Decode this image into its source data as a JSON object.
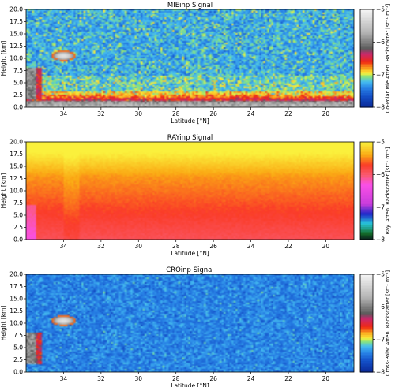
{
  "chart_data": [
    {
      "type": "heatmap",
      "title": "MIEinp Signal",
      "xlabel": "Latitude [°N]",
      "ylabel": "Height [km]",
      "colorbar_label": "Co-Polar Mie Atten. Backscatter [sr⁻¹ m⁻¹]",
      "xlim": [
        36,
        18.5
      ],
      "x_reversed": true,
      "ylim": [
        0,
        20
      ],
      "xticks": [
        34,
        32,
        30,
        28,
        26,
        24,
        22,
        20
      ],
      "xtick_labels": [
        "34",
        "32",
        "30",
        "28",
        "26",
        "24",
        "22",
        "20"
      ],
      "yticks": [
        0.0,
        2.5,
        5.0,
        7.5,
        10.0,
        12.5,
        15.0,
        17.5,
        20.0
      ],
      "ytick_labels": [
        "0.0",
        "2.5",
        "5.0",
        "7.5",
        "10.0",
        "12.5",
        "15.0",
        "17.5",
        "20.0"
      ],
      "colorbar_range": [
        -8,
        -5
      ],
      "colorbar_ticks": [
        -8,
        -7,
        -6,
        -5
      ],
      "colorbar_tick_labels": [
        "−8",
        "−7",
        "−6",
        "−5"
      ],
      "colormap": "mie",
      "features": [
        "noisy background ~ -7.2",
        "boundary layer aerosol 0–3 km",
        "ice cloud near 34°N at ~10.5 km",
        "dense cloud near 35.5°N below 8 km"
      ]
    },
    {
      "type": "heatmap",
      "title": "RAYinp Signal",
      "xlabel": "Latitude [°N]",
      "ylabel": "Height [km]",
      "colorbar_label": "Ray. Atten. Backscatter [sr⁻¹ m⁻¹]",
      "xlim": [
        36,
        18.5
      ],
      "x_reversed": true,
      "ylim": [
        0,
        20
      ],
      "xticks": [
        34,
        32,
        30,
        28,
        26,
        24,
        22,
        20
      ],
      "xtick_labels": [
        "34",
        "32",
        "30",
        "28",
        "26",
        "24",
        "22",
        "20"
      ],
      "yticks": [
        0.0,
        2.5,
        5.0,
        7.5,
        10.0,
        12.5,
        15.0,
        17.5,
        20.0
      ],
      "ytick_labels": [
        "0.0",
        "2.5",
        "5.0",
        "7.5",
        "10.0",
        "12.5",
        "15.0",
        "17.5",
        "20.0"
      ],
      "colorbar_range": [
        -8,
        -5
      ],
      "colorbar_ticks": [
        -8,
        -7,
        -6,
        -5
      ],
      "colorbar_tick_labels": [
        "−8",
        "−7",
        "−6",
        "−5"
      ],
      "colormap": "ray",
      "features": [
        "signal decreases with height from ~ -5.9 near ground to ~ -5.2 at 20 km"
      ]
    },
    {
      "type": "heatmap",
      "title": "CROinp Signal",
      "xlabel": "Latitude [°N]",
      "ylabel": "Height [km]",
      "colorbar_label": "Cross-Polar Atten. Backscatter [sr⁻¹ m⁻¹]",
      "xlim": [
        36,
        18.5
      ],
      "x_reversed": true,
      "ylim": [
        0,
        20
      ],
      "xticks": [
        34,
        32,
        30,
        28,
        26,
        24,
        22,
        20
      ],
      "xtick_labels": [
        "34",
        "32",
        "30",
        "28",
        "26",
        "24",
        "22",
        "20"
      ],
      "yticks": [
        0.0,
        2.5,
        5.0,
        7.5,
        10.0,
        12.5,
        15.0,
        17.5,
        20.0
      ],
      "ytick_labels": [
        "0.0",
        "2.5",
        "5.0",
        "7.5",
        "10.0",
        "12.5",
        "15.0",
        "17.5",
        "20.0"
      ],
      "colorbar_range": [
        -8,
        -5
      ],
      "colorbar_ticks": [
        -8,
        -7,
        -6,
        -5
      ],
      "colorbar_tick_labels": [
        "−8",
        "−7",
        "−6",
        "−5"
      ],
      "colormap": "mie",
      "features": [
        "noisy background ~ -7.4",
        "ice cloud near 34°N at ~10.5 km",
        "cloud near 35.5°N below 7 km"
      ]
    }
  ]
}
